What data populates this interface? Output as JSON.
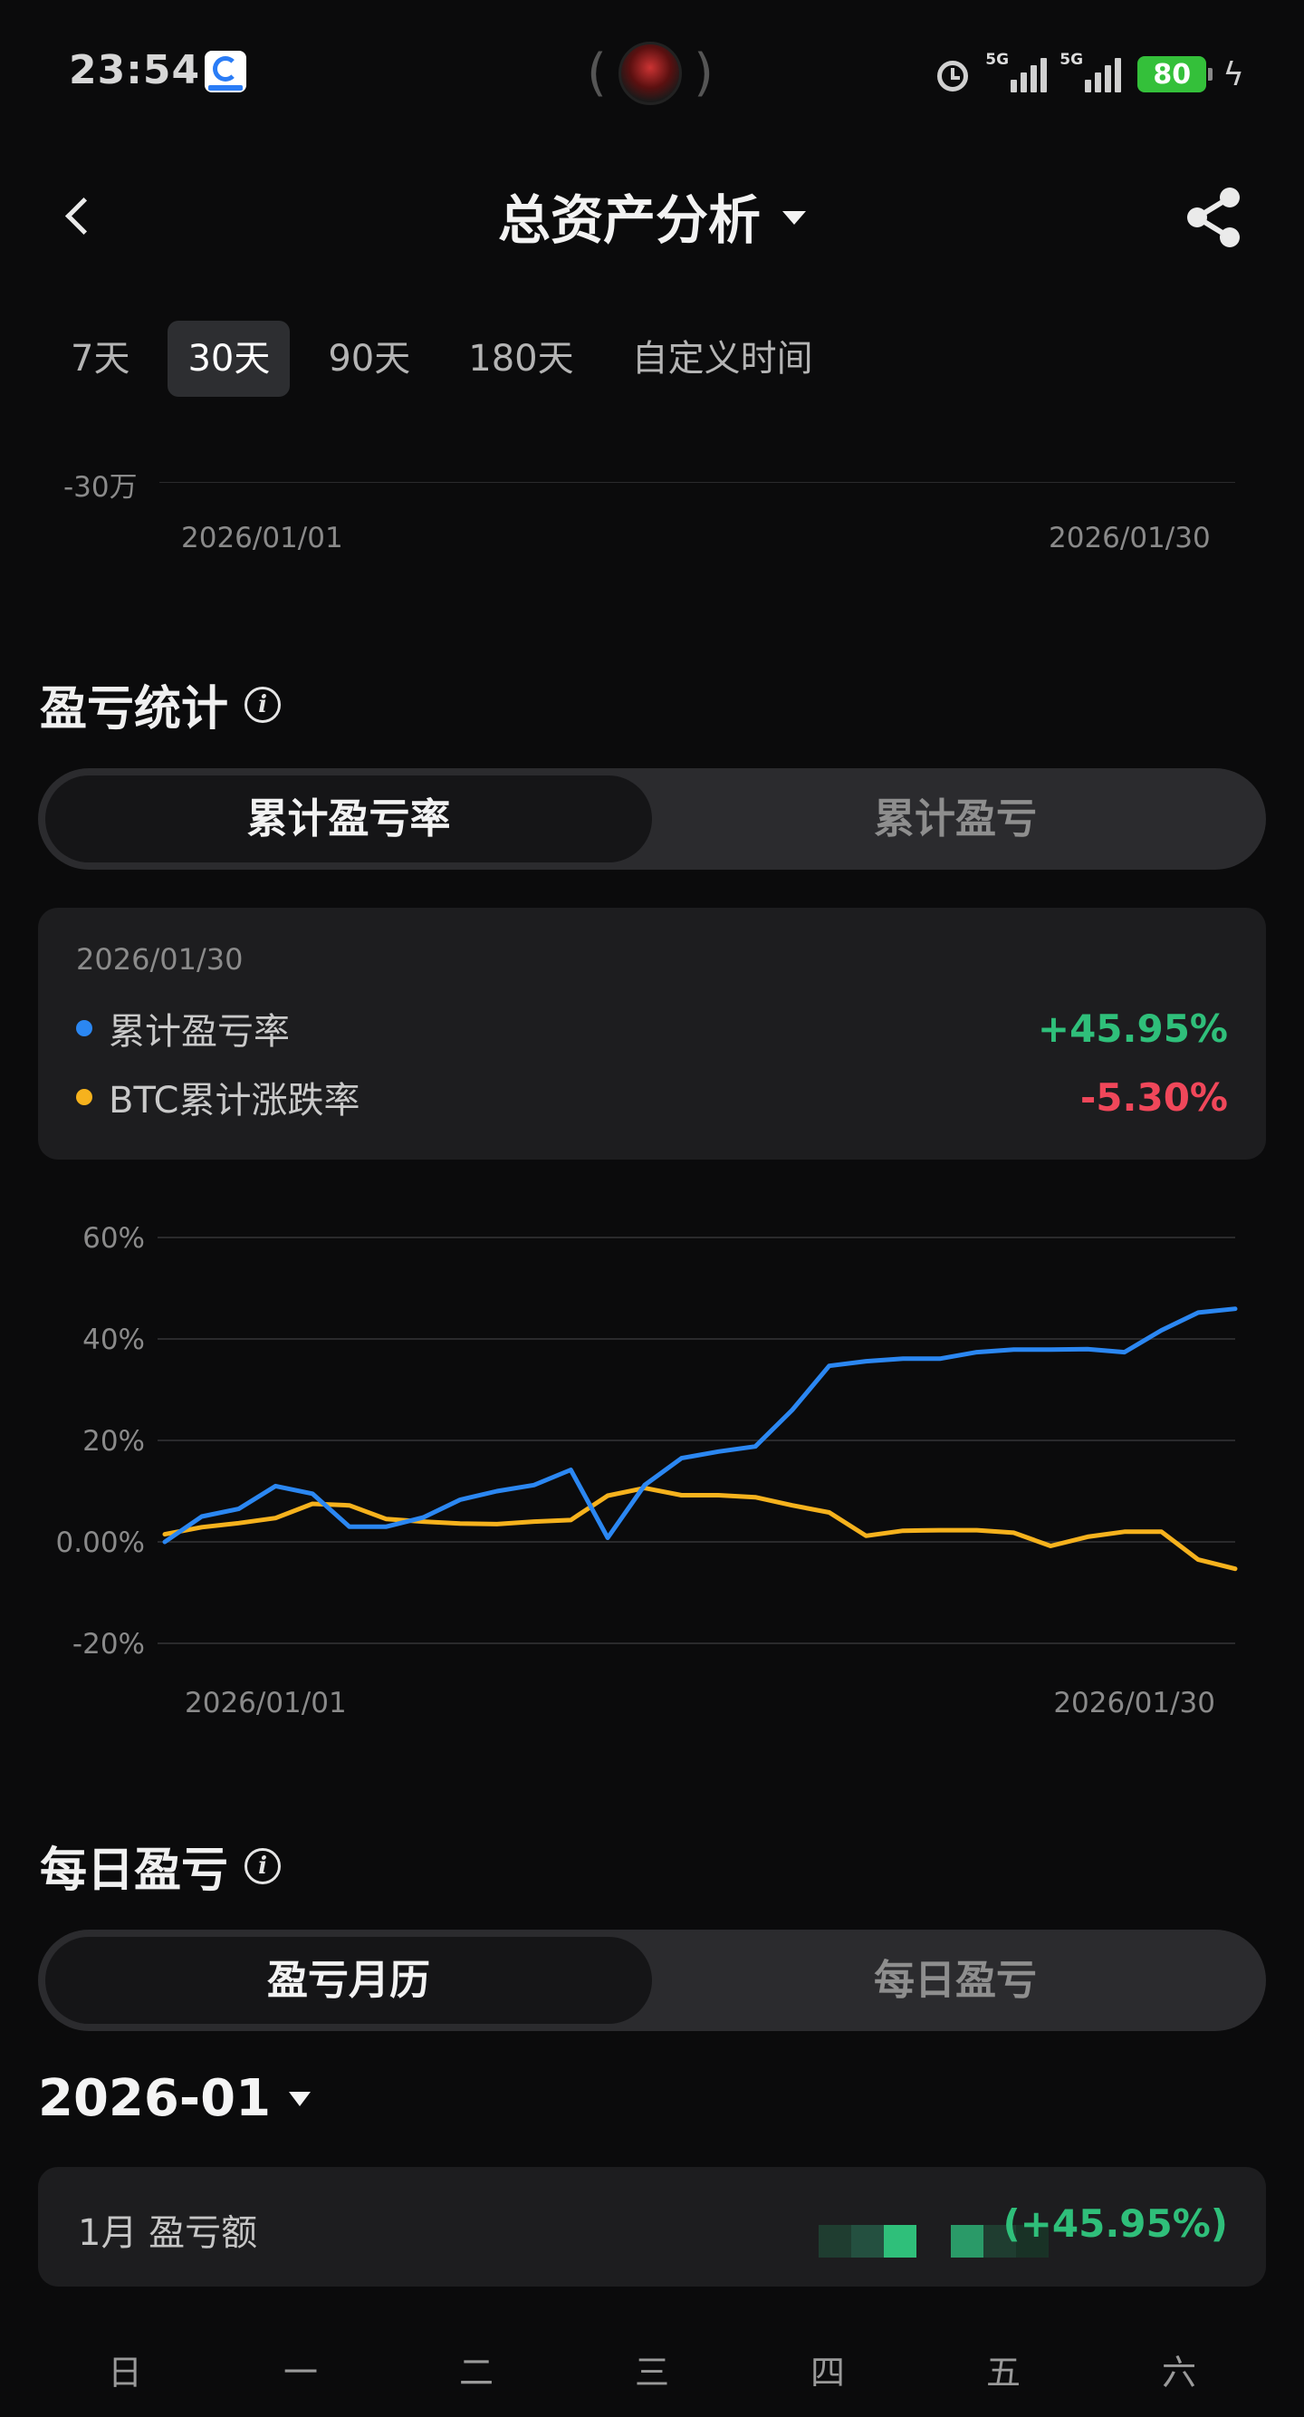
{
  "status_bar": {
    "time": "23:54",
    "signal1_label": "5G",
    "signal2_label": "5G",
    "battery": "80",
    "icons": [
      "app-badge-icon",
      "camera-icon",
      "alarm-icon",
      "signal-icon",
      "signal-icon",
      "battery-icon",
      "charging-bolt-icon"
    ]
  },
  "header": {
    "title": "总资产分析",
    "icons": [
      "back-icon",
      "dropdown-caret-icon",
      "share-icon"
    ]
  },
  "range_tabs": [
    {
      "label": "7天",
      "active": false
    },
    {
      "label": "30天",
      "active": true
    },
    {
      "label": "90天",
      "active": false
    },
    {
      "label": "180天",
      "active": false
    },
    {
      "label": "自定义时间",
      "active": false
    }
  ],
  "top_chart": {
    "y_tick": "-30万",
    "x_start": "2026/01/01",
    "x_end": "2026/01/30"
  },
  "pnl_stats": {
    "title": "盈亏统计",
    "toggle": {
      "selected": "累计盈亏率",
      "other": "累计盈亏"
    },
    "summary": {
      "date": "2026/01/30",
      "rows": [
        {
          "label": "累计盈亏率",
          "value": "+45.95%",
          "dot_color": "#2b87f2",
          "value_color": "#2fbf7a"
        },
        {
          "label": "BTC累计涨跌率",
          "value": "-5.30%",
          "dot_color": "#f6b21d",
          "value_color": "#f0475a"
        }
      ]
    }
  },
  "chart_data": {
    "type": "line",
    "x": [
      "2026/01/01",
      "2026/01/02",
      "2026/01/03",
      "2026/01/04",
      "2026/01/05",
      "2026/01/06",
      "2026/01/07",
      "2026/01/08",
      "2026/01/09",
      "2026/01/10",
      "2026/01/11",
      "2026/01/12",
      "2026/01/13",
      "2026/01/14",
      "2026/01/15",
      "2026/01/16",
      "2026/01/17",
      "2026/01/18",
      "2026/01/19",
      "2026/01/20",
      "2026/01/21",
      "2026/01/22",
      "2026/01/23",
      "2026/01/24",
      "2026/01/25",
      "2026/01/26",
      "2026/01/27",
      "2026/01/28",
      "2026/01/29",
      "2026/01/30"
    ],
    "series": [
      {
        "name": "累计盈亏率",
        "color": "#2b87f2",
        "values": [
          0.0,
          5.0,
          6.5,
          11.0,
          9.5,
          3.0,
          3.0,
          4.8,
          8.3,
          10.0,
          11.2,
          14.2,
          0.8,
          11.2,
          16.5,
          17.8,
          18.8,
          26.0,
          34.7,
          35.6,
          36.1,
          36.1,
          37.4,
          37.9,
          37.9,
          38.0,
          37.4,
          41.7,
          45.2,
          45.95
        ]
      },
      {
        "name": "BTC累计涨跌率",
        "color": "#f6b21d",
        "values": [
          1.5,
          2.9,
          3.7,
          4.7,
          7.5,
          7.2,
          4.5,
          4.0,
          3.6,
          3.5,
          4.0,
          4.3,
          9.1,
          10.6,
          9.2,
          9.2,
          8.8,
          7.2,
          5.8,
          1.2,
          2.2,
          2.3,
          2.3,
          1.8,
          -0.8,
          1.0,
          2.0,
          2.0,
          -3.5,
          -5.3
        ]
      }
    ],
    "y_ticks": [
      "60%",
      "40%",
      "20%",
      "0.00%",
      "-20%"
    ],
    "ylim": [
      -20,
      60
    ],
    "x_tick_labels": [
      "2026/01/01",
      "2026/01/30"
    ],
    "grid": true
  },
  "daily_pnl": {
    "title": "每日盈亏",
    "toggle": {
      "selected": "盈亏月历",
      "other": "每日盈亏"
    },
    "month": "2026-01",
    "month_row": {
      "label": "1月 盈亏额",
      "percent": "(+45.95%)"
    },
    "weekdays": [
      "日",
      "一",
      "二",
      "三",
      "四",
      "五",
      "六"
    ]
  }
}
